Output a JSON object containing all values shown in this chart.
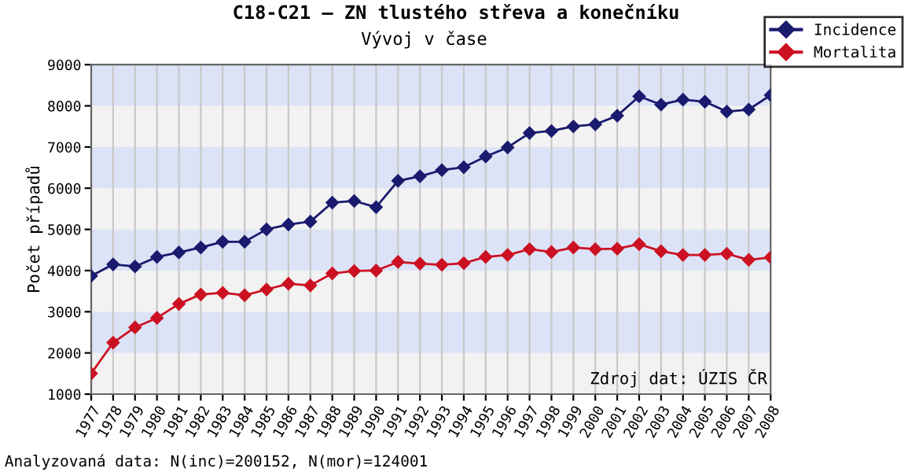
{
  "chart_data": {
    "type": "line",
    "title": "C18-C21 – ZN tlustého střeva a konečníku",
    "subtitle": "Vývoj v čase",
    "ylabel": "Počet případů",
    "categories": [
      "1977",
      "1978",
      "1979",
      "1980",
      "1981",
      "1982",
      "1983",
      "1984",
      "1985",
      "1986",
      "1987",
      "1988",
      "1989",
      "1990",
      "1991",
      "1992",
      "1993",
      "1994",
      "1995",
      "1996",
      "1997",
      "1998",
      "1999",
      "2000",
      "2001",
      "2002",
      "2003",
      "2004",
      "2005",
      "2006",
      "2007",
      "2008"
    ],
    "series": [
      {
        "name": "Incidence",
        "color": "#1a1a6e",
        "values": [
          3870,
          4150,
          4100,
          4330,
          4440,
          4560,
          4700,
          4700,
          5000,
          5120,
          5190,
          5650,
          5690,
          5540,
          6180,
          6290,
          6440,
          6510,
          6770,
          6990,
          7340,
          7390,
          7500,
          7550,
          7760,
          8230,
          8030,
          8150,
          8100,
          7860,
          7910,
          8260
        ]
      },
      {
        "name": "Mortalita",
        "color": "#cc1122",
        "values": [
          1500,
          2250,
          2620,
          2850,
          3190,
          3420,
          3460,
          3400,
          3540,
          3680,
          3640,
          3930,
          3990,
          4000,
          4210,
          4170,
          4140,
          4180,
          4330,
          4380,
          4520,
          4450,
          4560,
          4520,
          4530,
          4640,
          4470,
          4380,
          4380,
          4410,
          4260,
          4320
        ]
      }
    ],
    "ylim": [
      1000,
      9000
    ],
    "yticks": [
      1000,
      2000,
      3000,
      4000,
      5000,
      6000,
      7000,
      8000,
      9000
    ],
    "grid": "x",
    "legend": "top right",
    "marker": "diamond",
    "line_style": "solid",
    "annotations": [
      "Zdroj dat: ÚZIS ČR",
      "Analyzovaná data: N(inc)=200152, N(mor)=124001"
    ]
  }
}
